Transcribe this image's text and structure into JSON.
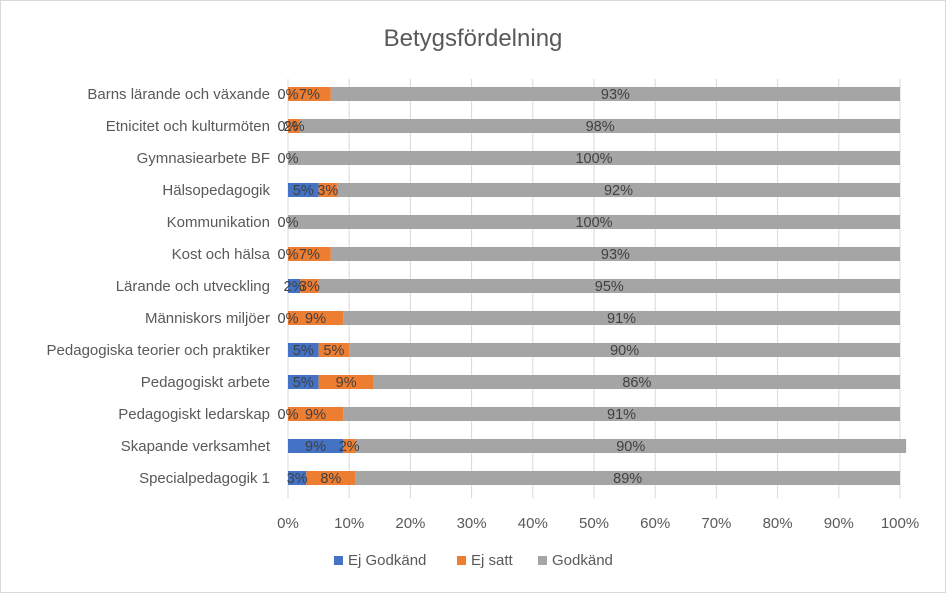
{
  "chart_data": {
    "type": "bar",
    "orientation": "horizontal",
    "stacked": "percent",
    "title": "Betygsfördelning",
    "categories": [
      "Barns lärande och växande",
      "Etnicitet och kulturmöten",
      "Gymnasiearbete BF",
      "Hälsopedagogik",
      "Kommunikation",
      "Kost och hälsa",
      "Lärande och utveckling",
      "Människors miljöer",
      "Pedagogiska teorier och praktiker",
      "Pedagogiskt arbete",
      "Pedagogiskt ledarskap",
      "Skapande verksamhet",
      "Specialpedagogik 1"
    ],
    "series": [
      {
        "name": "Ej Godkänd",
        "color": "#4472C4",
        "values": [
          0,
          0,
          0,
          5,
          0,
          0,
          2,
          0,
          5,
          5,
          0,
          9,
          3
        ],
        "labels": [
          "0%",
          "0%",
          "0%",
          "5%",
          "0%",
          "0%",
          "2%",
          "0%",
          "5%",
          "5%",
          "0%",
          "9%",
          "3%"
        ]
      },
      {
        "name": "Ej satt",
        "color": "#ED7D31",
        "values": [
          7,
          2,
          0,
          3,
          0,
          7,
          3,
          9,
          5,
          9,
          9,
          2,
          8
        ],
        "labels": [
          "7%",
          "2%",
          "",
          "3%",
          "",
          "7%",
          "3%",
          "9%",
          "5%",
          "9%",
          "9%",
          "2%",
          "8%"
        ]
      },
      {
        "name": "Godkänd",
        "color": "#A5A5A5",
        "values": [
          93,
          98,
          100,
          92,
          100,
          93,
          95,
          91,
          90,
          86,
          91,
          90,
          89
        ],
        "labels": [
          "93%",
          "98%",
          "100%",
          "92%",
          "100%",
          "93%",
          "95%",
          "91%",
          "90%",
          "86%",
          "91%",
          "90%",
          "89%"
        ]
      }
    ],
    "xlim": [
      0,
      100
    ],
    "x_ticks": [
      "0%",
      "10%",
      "20%",
      "30%",
      "40%",
      "50%",
      "60%",
      "70%",
      "80%",
      "90%",
      "100%"
    ],
    "grid": true,
    "legend_position": "bottom"
  }
}
